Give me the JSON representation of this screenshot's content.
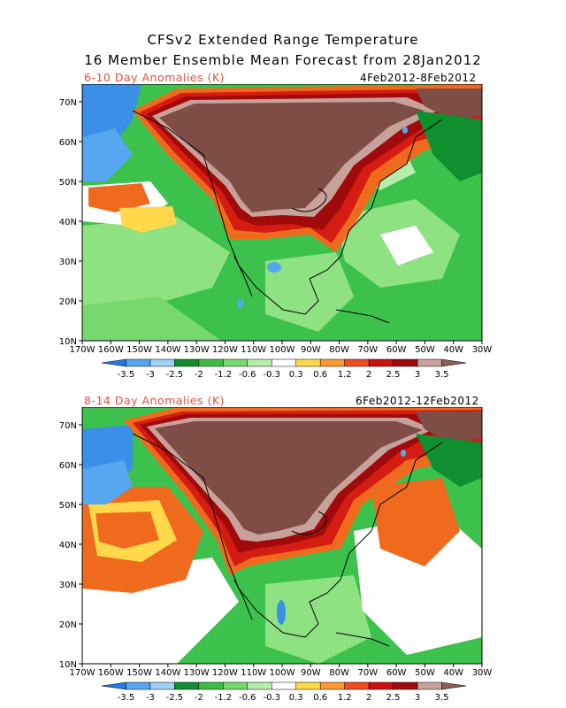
{
  "header": {
    "title": "CFSv2 Extended Range Temperature",
    "subtitle": "16 Member Ensemble Mean Forecast from 28Jan2012"
  },
  "panels": [
    {
      "label": "6-10 Day Anomalies (K)",
      "dates": "4Feb2012-8Feb2012"
    },
    {
      "label": "8-14 Day Anomalies (K)",
      "dates": "6Feb2012-12Feb2012"
    }
  ],
  "axes": {
    "lat_ticks": [
      "10N",
      "20N",
      "30N",
      "40N",
      "50N",
      "60N",
      "70N"
    ],
    "lon_ticks": [
      "170W",
      "160W",
      "150W",
      "140W",
      "130W",
      "120W",
      "110W",
      "100W",
      "90W",
      "80W",
      "70W",
      "60W",
      "50W",
      "40W",
      "30W"
    ]
  },
  "colorbar": {
    "levels": [
      "-3.5",
      "-3",
      "-2.5",
      "-2",
      "-1.2",
      "-0.6",
      "-0.3",
      "0.3",
      "0.6",
      "1.2",
      "2",
      "2.5",
      "3",
      "3.5"
    ],
    "colors": [
      "#1f78e6",
      "#55a7f0",
      "#9fd0f8",
      "#0f8f2e",
      "#3cbc44",
      "#78d870",
      "#b4eeaa",
      "#ffffff",
      "#ffd94a",
      "#ff9a2e",
      "#f04a1e",
      "#cc1010",
      "#a00a0a",
      "#c8a29a",
      "#8a5e56"
    ]
  },
  "legend_colors": {
    "strong_warm": "#7d4d46",
    "warm_mauve": "#b89590",
    "red": "#d41c12",
    "orange": "#f06a1e",
    "green": "#3cc24c",
    "light_green": "#8ee282",
    "white": "#ffffff",
    "blue": "#3a8fe6"
  }
}
